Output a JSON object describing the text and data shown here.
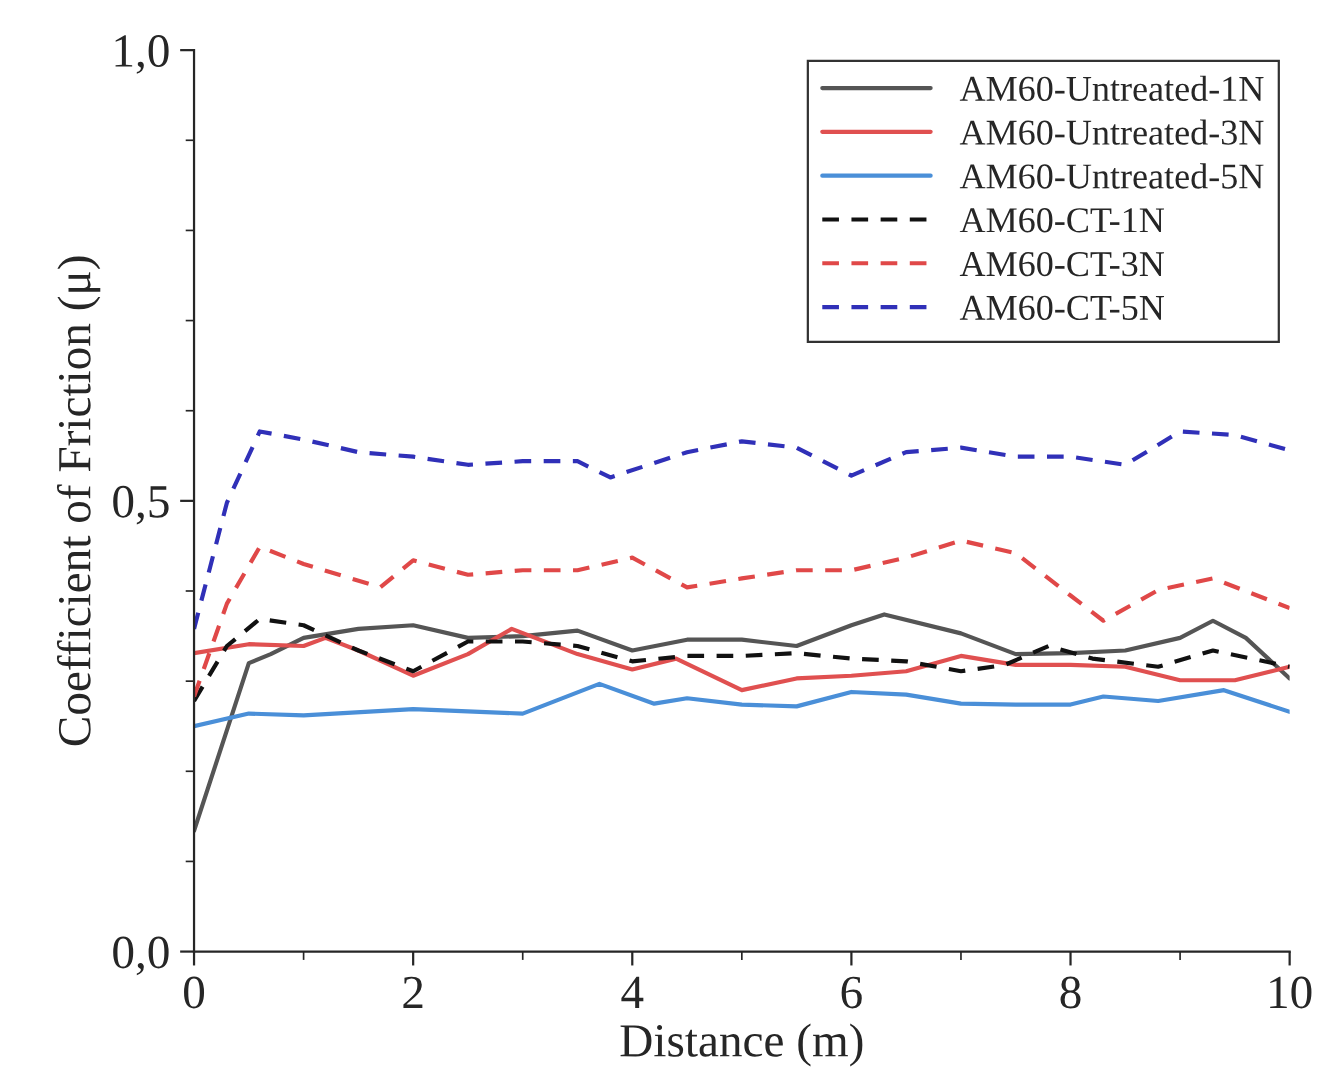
{
  "chart_data": {
    "type": "line",
    "xlabel": "Distance (m)",
    "ylabel": "Coefficient of Friction (μ)",
    "xlim": [
      0,
      10
    ],
    "xticks": [
      0,
      2,
      4,
      6,
      8,
      10
    ],
    "ylim": [
      0,
      1
    ],
    "yticks": [
      {
        "value": 0,
        "label": "0,0"
      },
      {
        "value": 0.5,
        "label": "0,5"
      },
      {
        "value": 1,
        "label": "1,0"
      }
    ],
    "grid": false,
    "legend": "top right",
    "marker": "none",
    "series": [
      {
        "name": "AM60-Untreated-1N",
        "color": "#555555",
        "line_style": "solid",
        "x": [
          0,
          0.5,
          0.7,
          1,
          1.5,
          2,
          2.5,
          3,
          3.5,
          4,
          4.5,
          5,
          5.5,
          6,
          6.3,
          7,
          7.5,
          8,
          8.5,
          9,
          9.3,
          9.6,
          10
        ],
        "values": [
          0.134,
          0.32,
          0.33,
          0.348,
          0.358,
          0.362,
          0.348,
          0.35,
          0.356,
          0.334,
          0.346,
          0.346,
          0.339,
          0.362,
          0.374,
          0.353,
          0.33,
          0.331,
          0.334,
          0.348,
          0.367,
          0.348,
          0.303
        ]
      },
      {
        "name": "AM60-Untreated-3N",
        "color": "#e05050",
        "line_style": "solid",
        "x": [
          0,
          0.5,
          1,
          1.2,
          1.5,
          2,
          2.5,
          2.9,
          3.5,
          4,
          4.4,
          5,
          5.5,
          6,
          6.5,
          7,
          7.5,
          8,
          8.5,
          9,
          9.5,
          10
        ],
        "values": [
          0.331,
          0.341,
          0.339,
          0.348,
          0.334,
          0.306,
          0.33,
          0.358,
          0.33,
          0.313,
          0.325,
          0.29,
          0.303,
          0.306,
          0.311,
          0.328,
          0.318,
          0.318,
          0.316,
          0.301,
          0.301,
          0.316
        ]
      },
      {
        "name": "AM60-Untreated-5N",
        "color": "#4a8fd8",
        "line_style": "solid",
        "x": [
          0,
          0.5,
          1,
          2,
          3,
          3.7,
          4.2,
          4.5,
          5,
          5.5,
          6,
          6.5,
          7,
          7.5,
          8,
          8.3,
          8.8,
          9.4,
          10
        ],
        "values": [
          0.25,
          0.264,
          0.262,
          0.269,
          0.264,
          0.297,
          0.275,
          0.281,
          0.274,
          0.272,
          0.288,
          0.285,
          0.275,
          0.274,
          0.274,
          0.283,
          0.278,
          0.29,
          0.266
        ]
      },
      {
        "name": "AM60-CT-1N",
        "color": "#111111",
        "line_style": "dashed",
        "x": [
          0,
          0.3,
          0.6,
          1,
          1.5,
          2,
          2.5,
          3,
          3.5,
          4,
          4.5,
          5,
          5.5,
          6,
          6.5,
          7,
          7.4,
          7.8,
          8.2,
          8.8,
          9.3,
          10
        ],
        "values": [
          0.278,
          0.339,
          0.369,
          0.362,
          0.334,
          0.311,
          0.344,
          0.344,
          0.339,
          0.322,
          0.328,
          0.328,
          0.331,
          0.325,
          0.322,
          0.311,
          0.318,
          0.339,
          0.325,
          0.316,
          0.334,
          0.316
        ]
      },
      {
        "name": "AM60-CT-3N",
        "color": "#e04848",
        "line_style": "dashed",
        "x": [
          0,
          0.3,
          0.6,
          1,
          1.7,
          2,
          2.5,
          3,
          3.5,
          4,
          4.5,
          5,
          5.5,
          6,
          6.5,
          7,
          7.5,
          8,
          8.3,
          8.8,
          9.3,
          10
        ],
        "values": [
          0.283,
          0.386,
          0.449,
          0.43,
          0.404,
          0.434,
          0.418,
          0.423,
          0.423,
          0.437,
          0.404,
          0.414,
          0.423,
          0.423,
          0.437,
          0.456,
          0.442,
          0.395,
          0.367,
          0.401,
          0.414,
          0.381
        ]
      },
      {
        "name": "AM60-CT-5N",
        "color": "#3030b8",
        "line_style": "dashed",
        "x": [
          0,
          0.3,
          0.6,
          1,
          1.5,
          2,
          2.5,
          3,
          3.5,
          3.8,
          4.5,
          5,
          5.5,
          6,
          6.5,
          7,
          7.5,
          8,
          8.5,
          9,
          9.5,
          10
        ],
        "values": [
          0.358,
          0.498,
          0.577,
          0.568,
          0.554,
          0.549,
          0.54,
          0.544,
          0.544,
          0.526,
          0.554,
          0.566,
          0.559,
          0.528,
          0.554,
          0.559,
          0.549,
          0.549,
          0.54,
          0.577,
          0.573,
          0.556
        ]
      }
    ]
  }
}
